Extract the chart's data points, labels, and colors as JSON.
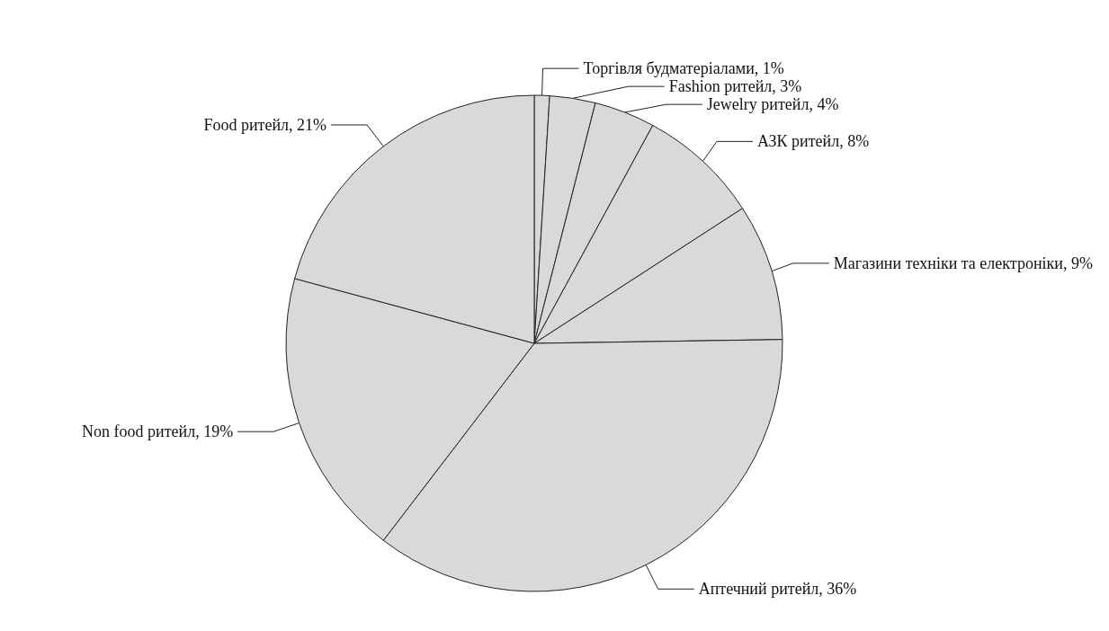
{
  "chart_data": {
    "type": "pie",
    "categories": [
      "Торгівля будматеріалами",
      "Fashion ритейл",
      "Jewelry ритейл",
      "АЗК ритейл",
      "Магазини техніки та електроніки",
      "Аптечний ритейл",
      "Non food ритейл",
      "Food ритейл"
    ],
    "values": [
      1,
      3,
      4,
      8,
      9,
      36,
      19,
      21
    ],
    "value_labels": [
      "1%",
      "3%",
      "4%",
      "8%",
      "9%",
      "36%",
      "19%",
      "21%"
    ],
    "colors": [
      "#d9d9d9",
      "#d9d9d9",
      "#d9d9d9",
      "#d9d9d9",
      "#d9d9d9",
      "#d9d9d9",
      "#d9d9d9",
      "#d9d9d9"
    ],
    "legend": false
  }
}
